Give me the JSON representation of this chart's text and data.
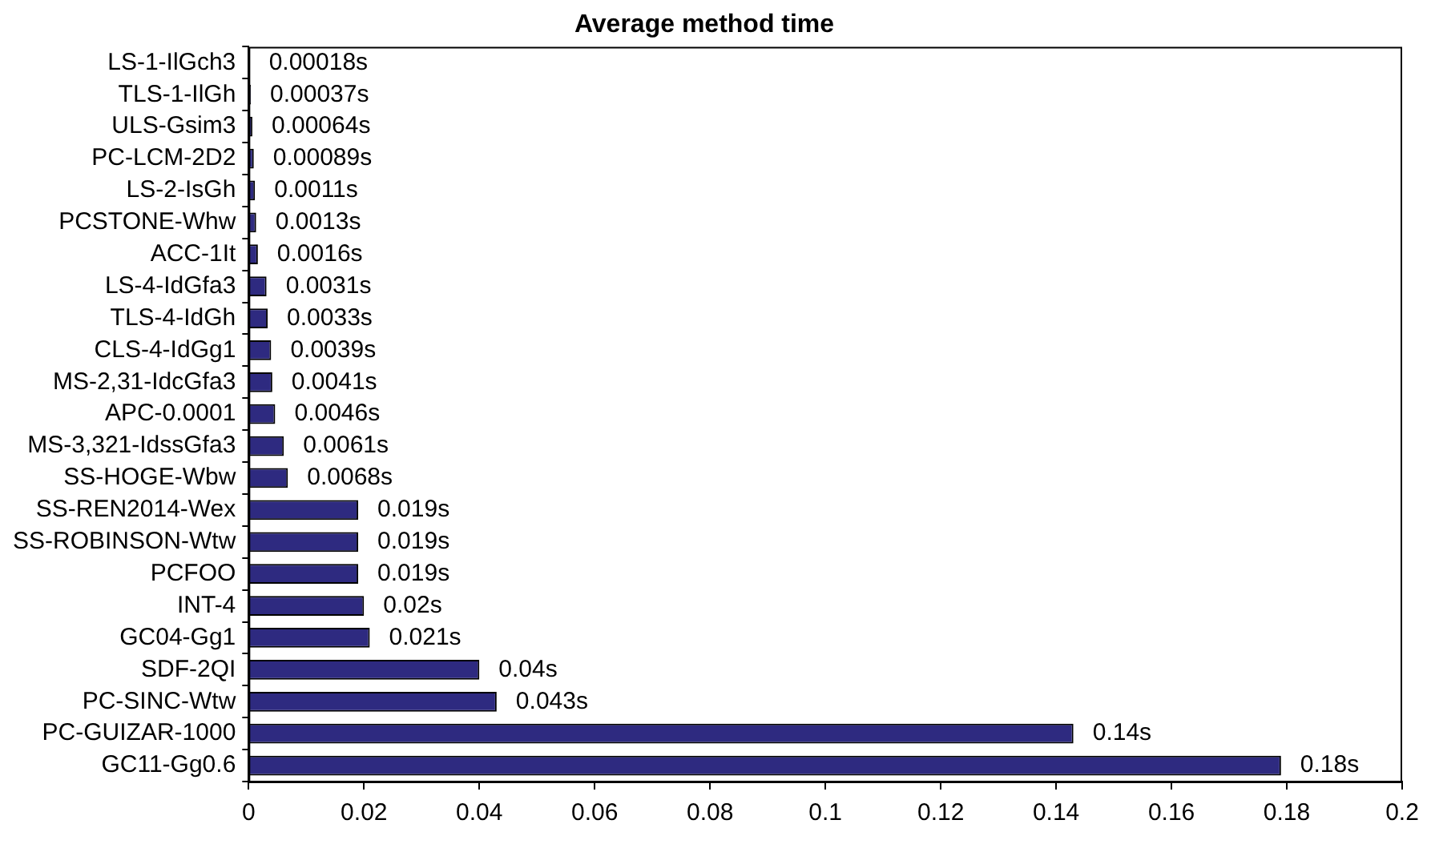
{
  "chart_data": {
    "type": "bar",
    "orientation": "horizontal",
    "title": "Average method time",
    "categories": [
      "LS-1-IlGch3",
      "TLS-1-IlGh",
      "ULS-Gsim3",
      "PC-LCM-2D2",
      "LS-2-IsGh",
      "PCSTONE-Whw",
      "ACC-1It",
      "LS-4-IdGfa3",
      "TLS-4-IdGh",
      "CLS-4-IdGg1",
      "MS-2,31-IdcGfa3",
      "APC-0.0001",
      "MS-3,321-IdssGfa3",
      "SS-HOGE-Wbw",
      "SS-REN2014-Wex",
      "SS-ROBINSON-Wtw",
      "PCFOO",
      "INT-4",
      "GC04-Gg1",
      "SDF-2QI",
      "PC-SINC-Wtw",
      "PC-GUIZAR-1000",
      "GC11-Gg0.6"
    ],
    "values": [
      0.00018,
      0.00037,
      0.00064,
      0.00089,
      0.0011,
      0.0013,
      0.0016,
      0.0031,
      0.0033,
      0.0039,
      0.0041,
      0.0046,
      0.0061,
      0.0068,
      0.019,
      0.019,
      0.019,
      0.02,
      0.021,
      0.04,
      0.043,
      0.143,
      0.179
    ],
    "value_labels": [
      "0.00018s",
      "0.00037s",
      "0.00064s",
      "0.00089s",
      "0.0011s",
      "0.0013s",
      "0.0016s",
      "0.0031s",
      "0.0033s",
      "0.0039s",
      "0.0041s",
      "0.0046s",
      "0.0061s",
      "0.0068s",
      "0.019s",
      "0.019s",
      "0.019s",
      "0.02s",
      "0.021s",
      "0.04s",
      "0.043s",
      "0.14s",
      "0.18s"
    ],
    "color": "#2e2a80",
    "xlim": [
      0,
      0.2
    ],
    "xticks": [
      0,
      0.02,
      0.04,
      0.06,
      0.08,
      0.1,
      0.12,
      0.14,
      0.16,
      0.18,
      0.2
    ],
    "grid": false,
    "legend": false
  }
}
